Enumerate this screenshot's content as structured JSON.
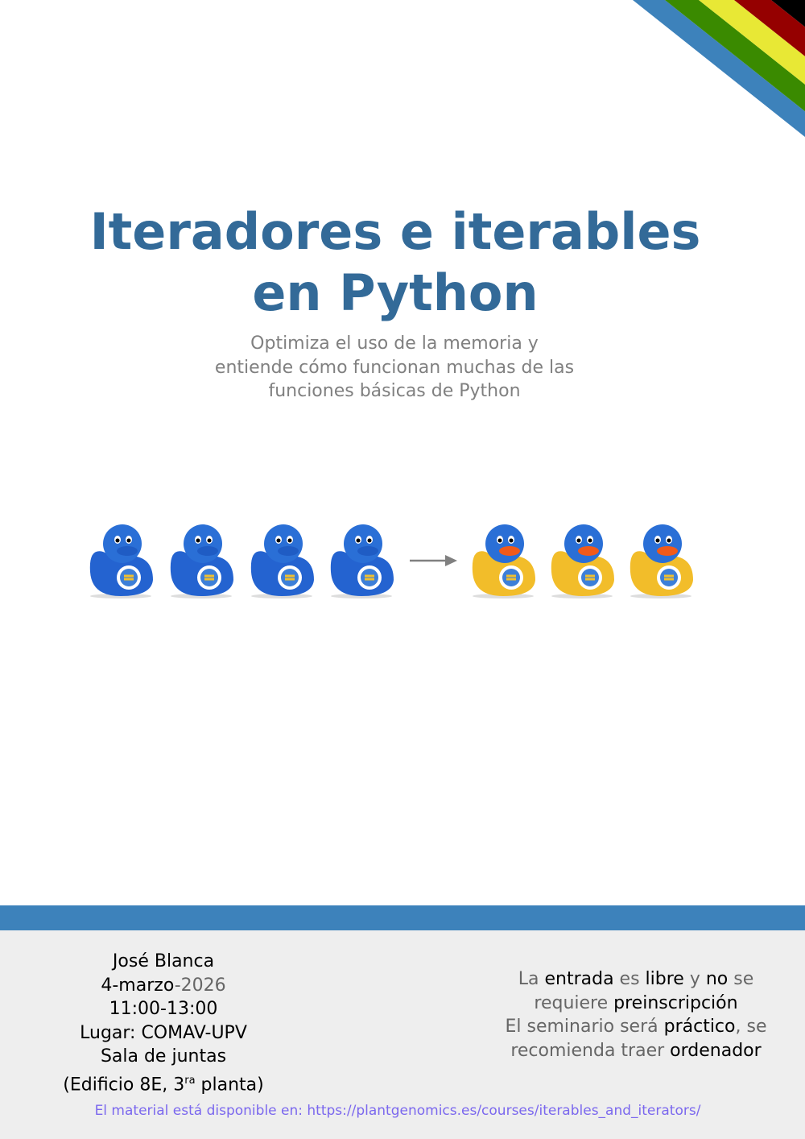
{
  "colors": {
    "title": "#336a98",
    "stripes": [
      "#3d82bb",
      "#3a8a00",
      "#e8e835",
      "#950000",
      "#000000"
    ],
    "footer_bar": "#3d82bb",
    "footer_bg": "#eeeeee",
    "link": "#7b68ee"
  },
  "title": {
    "line1": "Iteradores e iterables",
    "line2": "en Python"
  },
  "subtitle": {
    "line1": "Optimiza el uso de la memoria y",
    "line2": "entiende cómo funcionan muchas de las",
    "line3": "funciones básicas de Python"
  },
  "illustration": {
    "left_ducks": "blue python rubber ducks",
    "left_count": 4,
    "arrow": "arrow-right",
    "right_ducks": "blue-yellow python rubber ducks",
    "right_count": 3
  },
  "footer": {
    "author": "José Blanca",
    "date_day": "4-marzo",
    "date_year": "-2026",
    "time": "11:00-13:00",
    "place": "Lugar: COMAV-UPV",
    "room": "Sala de juntas",
    "building_pre": "(Edificio 8E, 3",
    "building_sup": "ra",
    "building_post": " planta)",
    "info": [
      [
        [
          "La ",
          "g"
        ],
        [
          "entrada",
          "k"
        ],
        [
          " es ",
          "g"
        ],
        [
          "libre",
          "k"
        ],
        [
          " y ",
          "g"
        ],
        [
          "no",
          "k"
        ],
        [
          " se",
          "g"
        ]
      ],
      [
        [
          "requiere ",
          "g"
        ],
        [
          "preinscripción",
          "k"
        ]
      ],
      [
        [
          "El seminario será ",
          "g"
        ],
        [
          "práctico",
          "k"
        ],
        [
          ", se",
          "g"
        ]
      ],
      [
        [
          "recomienda traer ",
          "g"
        ],
        [
          "ordenador",
          "k"
        ]
      ]
    ],
    "link": "El material está disponible en: https://plantgenomics.es/courses/iterables_and_iterators/"
  }
}
